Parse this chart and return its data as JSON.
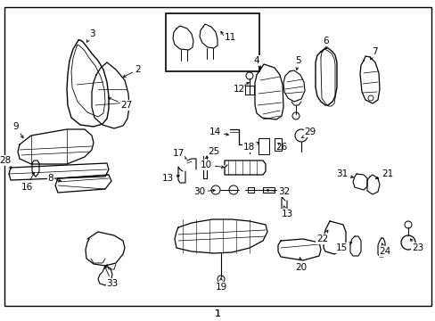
{
  "background_color": "#ffffff",
  "border_color": "#000000",
  "line_color": "#000000",
  "text_color": "#000000",
  "fig_width": 4.89,
  "fig_height": 3.6,
  "dpi": 100
}
